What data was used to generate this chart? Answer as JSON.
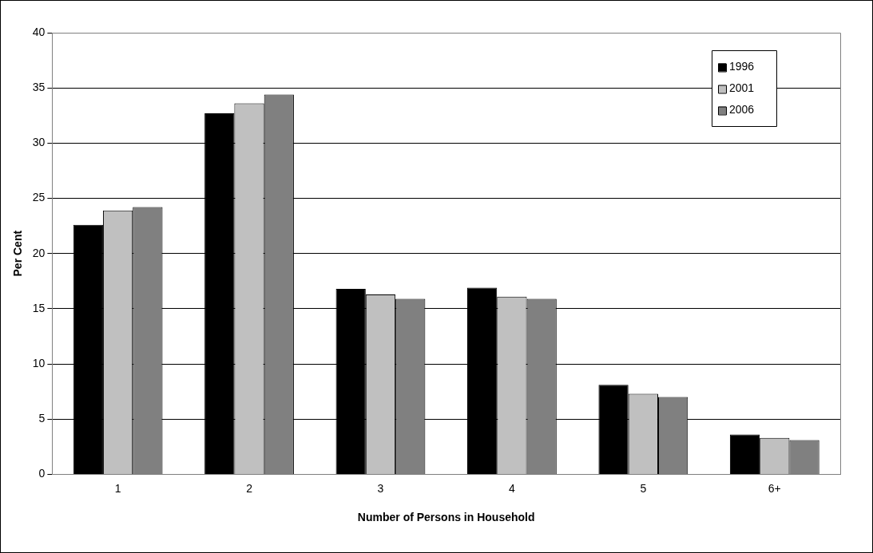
{
  "chart_data": {
    "type": "bar",
    "xlabel": "Number of Persons in Household",
    "ylabel": "Per Cent",
    "categories": [
      "1",
      "2",
      "3",
      "4",
      "5",
      "6+"
    ],
    "series": [
      {
        "name": "1996",
        "color": "#000000",
        "values": [
          22.6,
          32.7,
          16.8,
          16.9,
          8.1,
          3.6
        ]
      },
      {
        "name": "2001",
        "color": "#c0c0c0",
        "values": [
          23.9,
          33.6,
          16.3,
          16.1,
          7.3,
          3.3
        ]
      },
      {
        "name": "2006",
        "color": "#808080",
        "values": [
          24.2,
          34.4,
          15.9,
          15.9,
          7.0,
          3.1
        ]
      }
    ],
    "ylim": [
      0,
      40
    ],
    "yticks": [
      0,
      5,
      10,
      15,
      20,
      25,
      30,
      35,
      40
    ],
    "grid": "y",
    "legend": "top right"
  }
}
